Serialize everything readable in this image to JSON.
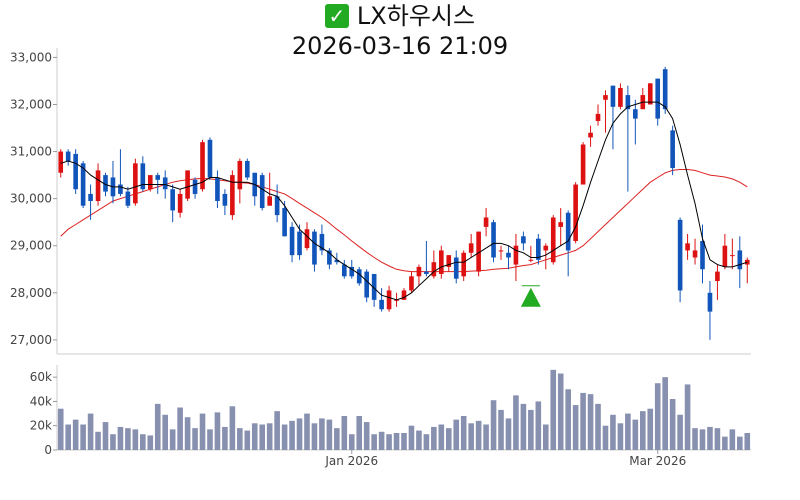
{
  "title": {
    "check_glyph": "✓",
    "check_color": "#22aa22",
    "name": "LX하우시스",
    "datetime": "2026-03-16 21:09"
  },
  "colors": {
    "up": "#dd1111",
    "down": "#1155bb",
    "ma_short": "#000000",
    "ma_long": "#dd2222",
    "volume": "#8890b0",
    "marker": "#22aa22"
  },
  "chart_data": {
    "type": "candlestick",
    "price_axis": {
      "min": 26700,
      "max": 33200,
      "ticks": [
        27000,
        28000,
        29000,
        30000,
        31000,
        32000,
        33000
      ],
      "tick_labels": [
        "27,000",
        "28,000",
        "29,000",
        "30,000",
        "31,000",
        "32,000",
        "33,000"
      ]
    },
    "volume_axis": {
      "min": 0,
      "max": 70000,
      "ticks": [
        0,
        20000,
        40000,
        60000
      ],
      "tick_labels": [
        "0",
        "20k",
        "40k",
        "60k"
      ]
    },
    "x_labels": [
      {
        "index": 39,
        "text": "Jan 2026"
      },
      {
        "index": 80,
        "text": "Mar 2026"
      }
    ],
    "marker_index": 63,
    "marker_price": 28150,
    "candles": [
      [
        30550,
        31000,
        31050,
        30450
      ],
      [
        31000,
        30800,
        31050,
        30700
      ],
      [
        30950,
        30200,
        31050,
        30100
      ],
      [
        30750,
        29850,
        30800,
        29800
      ],
      [
        30100,
        29950,
        30300,
        29550
      ],
      [
        29950,
        30600,
        30750,
        29850
      ],
      [
        30500,
        30150,
        30550,
        30050
      ],
      [
        30450,
        30050,
        30800,
        29900
      ],
      [
        30300,
        30100,
        31050,
        30050
      ],
      [
        30150,
        29850,
        30250,
        29800
      ],
      [
        29900,
        30750,
        30850,
        29850
      ],
      [
        30750,
        30200,
        30900,
        30150
      ],
      [
        30200,
        30500,
        30500,
        30150
      ],
      [
        30500,
        30400,
        30550,
        30100
      ],
      [
        30450,
        30200,
        30600,
        30000
      ],
      [
        30200,
        29750,
        30300,
        29500
      ],
      [
        29700,
        30100,
        30200,
        29600
      ],
      [
        30000,
        30600,
        30600,
        29950
      ],
      [
        30400,
        30100,
        30450,
        30000
      ],
      [
        30200,
        31200,
        31250,
        30150
      ],
      [
        31250,
        30450,
        31300,
        30400
      ],
      [
        30450,
        29950,
        30600,
        29800
      ],
      [
        30100,
        29850,
        30200,
        29650
      ],
      [
        29650,
        30500,
        30600,
        29550
      ],
      [
        30200,
        30800,
        30850,
        29900
      ],
      [
        30800,
        30450,
        30850,
        30400
      ],
      [
        30550,
        30050,
        30550,
        29850
      ],
      [
        30500,
        29800,
        30550,
        29750
      ],
      [
        29850,
        30050,
        30550,
        29850
      ],
      [
        30050,
        29650,
        30300,
        29500
      ],
      [
        29800,
        29200,
        29950,
        29200
      ],
      [
        29400,
        28800,
        29500,
        28650
      ],
      [
        29300,
        28800,
        29450,
        28700
      ],
      [
        28950,
        29350,
        29500,
        28900
      ],
      [
        29300,
        28600,
        29350,
        28450
      ],
      [
        29250,
        28900,
        29450,
        28800
      ],
      [
        28900,
        28600,
        28950,
        28500
      ],
      [
        28700,
        28650,
        28850,
        28600
      ],
      [
        28600,
        28350,
        28700,
        28300
      ],
      [
        28550,
        28350,
        28700,
        28300
      ],
      [
        28500,
        28200,
        28550,
        28150
      ],
      [
        28450,
        27900,
        28500,
        27800
      ],
      [
        28400,
        27850,
        28400,
        27700
      ],
      [
        27850,
        27650,
        28100,
        27600
      ],
      [
        27650,
        28050,
        28150,
        27600
      ],
      [
        27850,
        27850,
        28000,
        27700
      ],
      [
        27850,
        28050,
        28100,
        27850
      ],
      [
        28050,
        28350,
        28450,
        28000
      ],
      [
        28350,
        28550,
        28600,
        28150
      ],
      [
        28450,
        28400,
        29100,
        28350
      ],
      [
        28350,
        28650,
        28900,
        28300
      ],
      [
        28400,
        28900,
        29000,
        28300
      ],
      [
        28550,
        28800,
        28800,
        28450
      ],
      [
        28750,
        28300,
        28900,
        28200
      ],
      [
        28350,
        28850,
        28900,
        28250
      ],
      [
        28850,
        29050,
        29250,
        28750
      ],
      [
        28450,
        29300,
        29300,
        28350
      ],
      [
        29400,
        29600,
        29800,
        29200
      ],
      [
        29500,
        28750,
        29550,
        28650
      ],
      [
        28900,
        28900,
        29000,
        28700
      ],
      [
        28850,
        28750,
        29000,
        28500
      ],
      [
        28600,
        29000,
        29250,
        28250
      ],
      [
        29200,
        29050,
        29300,
        28900
      ],
      [
        28700,
        28700,
        29000,
        28650
      ],
      [
        29150,
        28700,
        29250,
        28600
      ],
      [
        28900,
        29000,
        29050,
        28500
      ],
      [
        28650,
        29600,
        29650,
        28600
      ],
      [
        29400,
        29500,
        29800,
        29000
      ],
      [
        29700,
        28900,
        29750,
        28350
      ],
      [
        29100,
        30300,
        30350,
        29050
      ],
      [
        30300,
        31150,
        31200,
        30300
      ],
      [
        31300,
        31400,
        31550,
        31100
      ],
      [
        31650,
        31800,
        32000,
        31550
      ],
      [
        32100,
        32200,
        32300,
        31400
      ],
      [
        32400,
        31950,
        32400,
        31050
      ],
      [
        31950,
        32350,
        32450,
        31900
      ],
      [
        32200,
        31900,
        32400,
        30150
      ],
      [
        31900,
        31700,
        32100,
        31150
      ],
      [
        31900,
        32200,
        32350,
        31900
      ],
      [
        32000,
        32450,
        32450,
        32000
      ],
      [
        32550,
        31700,
        32550,
        31550
      ],
      [
        32750,
        31900,
        32800,
        31800
      ],
      [
        31450,
        30650,
        31550,
        30500
      ],
      [
        29550,
        28050,
        29600,
        27800
      ],
      [
        28900,
        29050,
        29250,
        28700
      ],
      [
        28750,
        28900,
        29150,
        28600
      ],
      [
        29100,
        28500,
        29450,
        28200
      ],
      [
        28000,
        27600,
        28250,
        27000
      ],
      [
        28250,
        28450,
        28600,
        27850
      ],
      [
        28550,
        29000,
        29250,
        28500
      ],
      [
        28800,
        28800,
        29150,
        28500
      ],
      [
        28900,
        28500,
        29200,
        28100
      ],
      [
        28600,
        28700,
        28750,
        28200
      ]
    ],
    "ma_short": [
      30750,
      30800,
      30750,
      30650,
      30500,
      30400,
      30300,
      30250,
      30250,
      30200,
      30250,
      30300,
      30300,
      30300,
      30300,
      30250,
      30200,
      30250,
      30300,
      30350,
      30450,
      30450,
      30400,
      30350,
      30350,
      30350,
      30300,
      30200,
      30100,
      30050,
      29850,
      29600,
      29350,
      29200,
      29050,
      28950,
      28850,
      28700,
      28600,
      28500,
      28400,
      28250,
      28100,
      27950,
      27900,
      27850,
      27900,
      28000,
      28150,
      28300,
      28450,
      28550,
      28600,
      28650,
      28650,
      28750,
      28850,
      28950,
      29050,
      29050,
      29000,
      28900,
      28850,
      28750,
      28750,
      28800,
      28900,
      29000,
      29100,
      29400,
      29850,
      30350,
      30800,
      31250,
      31600,
      31800,
      31950,
      32000,
      32050,
      32050,
      32050,
      31950,
      31700,
      31150,
      30500,
      29900,
      29150,
      28700,
      28600,
      28550,
      28550,
      28600,
      28650
    ],
    "ma_long": [
      29200,
      29350,
      29450,
      29550,
      29650,
      29750,
      29850,
      29950,
      30000,
      30050,
      30100,
      30150,
      30200,
      30250,
      30300,
      30350,
      30380,
      30400,
      30420,
      30430,
      30420,
      30400,
      30380,
      30360,
      30340,
      30330,
      30300,
      30250,
      30200,
      30150,
      30100,
      30000,
      29900,
      29800,
      29700,
      29600,
      29480,
      29350,
      29230,
      29100,
      28980,
      28860,
      28750,
      28650,
      28570,
      28500,
      28470,
      28450,
      28450,
      28450,
      28450,
      28450,
      28450,
      28450,
      28450,
      28460,
      28470,
      28480,
      28500,
      28510,
      28520,
      28550,
      28580,
      28600,
      28650,
      28700,
      28750,
      28800,
      28850,
      28900,
      29000,
      29150,
      29300,
      29450,
      29600,
      29750,
      29900,
      30050,
      30200,
      30350,
      30450,
      30550,
      30600,
      30620,
      30620,
      30600,
      30550,
      30500,
      30480,
      30460,
      30420,
      30350,
      30250
    ],
    "volume": [
      34000,
      21000,
      25000,
      21000,
      30000,
      15000,
      23000,
      13000,
      19000,
      18000,
      17000,
      13000,
      12000,
      38000,
      29000,
      17000,
      35000,
      27000,
      18000,
      30000,
      17000,
      31000,
      19000,
      36000,
      18000,
      16000,
      22000,
      21000,
      22000,
      32000,
      21000,
      24000,
      26000,
      30000,
      22000,
      26000,
      25000,
      18000,
      28000,
      13000,
      28000,
      23000,
      13000,
      15000,
      13000,
      14000,
      14000,
      20000,
      16000,
      13000,
      19000,
      21000,
      18000,
      25000,
      28000,
      22000,
      24000,
      21000,
      41000,
      33000,
      26000,
      45000,
      38000,
      33000,
      40000,
      21000,
      66000,
      63000,
      50000,
      37000,
      47000,
      46000,
      38000,
      20000,
      29000,
      22000,
      30000,
      25000,
      32000,
      34000,
      55000,
      60000,
      42000,
      29000,
      54000,
      18000,
      17000,
      19000,
      18000,
      11000,
      17000,
      11000,
      14000
    ]
  }
}
